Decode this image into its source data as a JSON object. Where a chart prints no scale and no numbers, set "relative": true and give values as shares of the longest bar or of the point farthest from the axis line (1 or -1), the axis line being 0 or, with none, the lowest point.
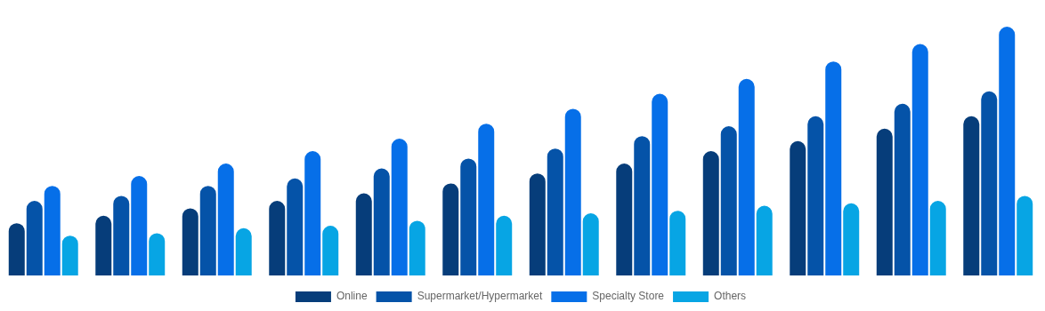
{
  "chart_data": {
    "type": "bar",
    "relative": true,
    "categories": [
      null,
      null,
      null,
      null,
      null,
      null,
      null,
      null,
      null,
      null,
      null,
      null
    ],
    "series": [
      {
        "name": "Online",
        "color": "#063d7a",
        "values": [
          0.21,
          0.24,
          0.27,
          0.3,
          0.33,
          0.37,
          0.41,
          0.45,
          0.5,
          0.54,
          0.59,
          0.64
        ]
      },
      {
        "name": "Supermarket/Hypermarket",
        "color": "#0553a8",
        "values": [
          0.3,
          0.32,
          0.36,
          0.39,
          0.43,
          0.47,
          0.51,
          0.56,
          0.6,
          0.64,
          0.69,
          0.74
        ]
      },
      {
        "name": "Specialty Store",
        "color": "#066fe8",
        "values": [
          0.36,
          0.4,
          0.45,
          0.5,
          0.55,
          0.61,
          0.67,
          0.73,
          0.79,
          0.86,
          0.93,
          1
        ]
      },
      {
        "name": "Others",
        "color": "#07a5e4",
        "values": [
          0.16,
          0.17,
          0.19,
          0.2,
          0.22,
          0.24,
          0.25,
          0.26,
          0.28,
          0.29,
          0.3,
          0.32
        ]
      }
    ],
    "legend": "bottom",
    "grid": false
  }
}
